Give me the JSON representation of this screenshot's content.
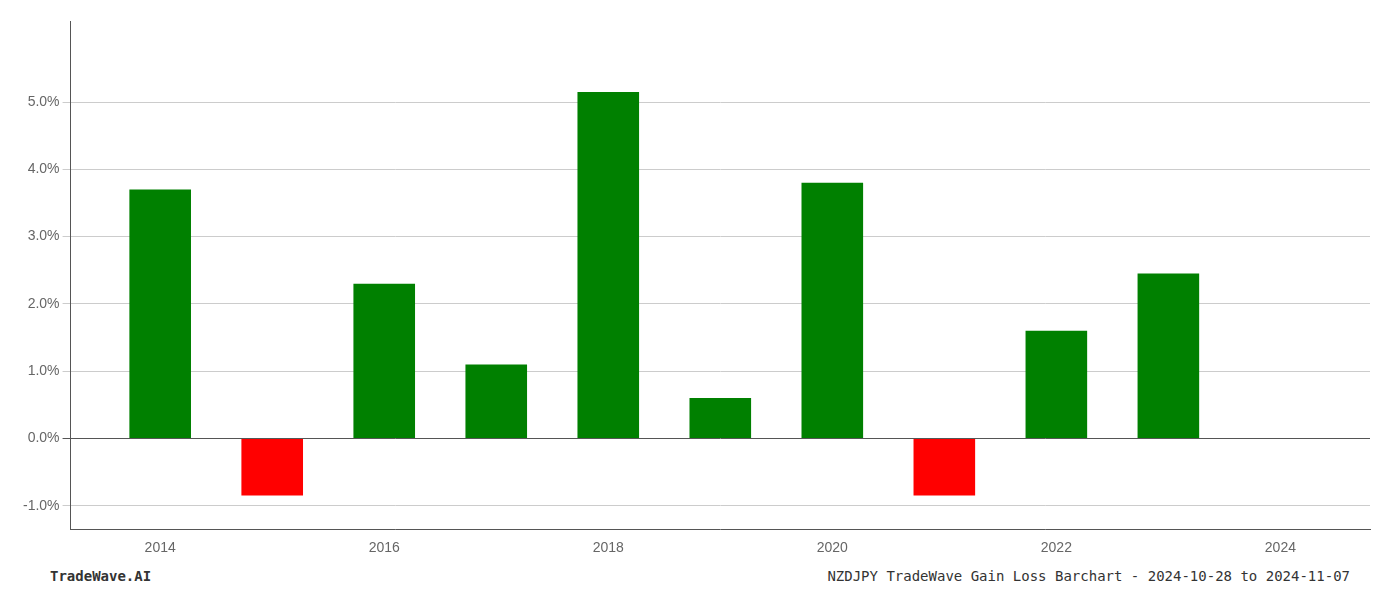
{
  "chart_data": {
    "type": "bar",
    "x": [
      2014,
      2015,
      2016,
      2017,
      2018,
      2019,
      2020,
      2021,
      2022,
      2023
    ],
    "values": [
      0.037,
      -0.0085,
      0.023,
      0.011,
      0.0515,
      0.006,
      0.038,
      -0.0085,
      0.016,
      0.0245
    ],
    "colors": [
      "#008000",
      "#ff0000",
      "#008000",
      "#008000",
      "#008000",
      "#008000",
      "#008000",
      "#ff0000",
      "#008000",
      "#008000"
    ],
    "xlim": [
      2013.2,
      2024.8
    ],
    "xticks": [
      2014,
      2016,
      2018,
      2020,
      2022,
      2024
    ],
    "ylim": [
      -0.0135,
      0.062
    ],
    "yticks": [
      {
        "value": -0.01,
        "label": "-1.0%"
      },
      {
        "value": 0.0,
        "label": "0.0%"
      },
      {
        "value": 0.01,
        "label": "1.0%"
      },
      {
        "value": 0.02,
        "label": "2.0%"
      },
      {
        "value": 0.03,
        "label": "3.0%"
      },
      {
        "value": 0.04,
        "label": "4.0%"
      },
      {
        "value": 0.05,
        "label": "5.0%"
      }
    ],
    "grid": "y",
    "annotations": [
      "TradeWave.AI",
      "NZDJPY TradeWave Gain Loss Barchart - 2024-10-28 to 2024-11-07"
    ]
  }
}
